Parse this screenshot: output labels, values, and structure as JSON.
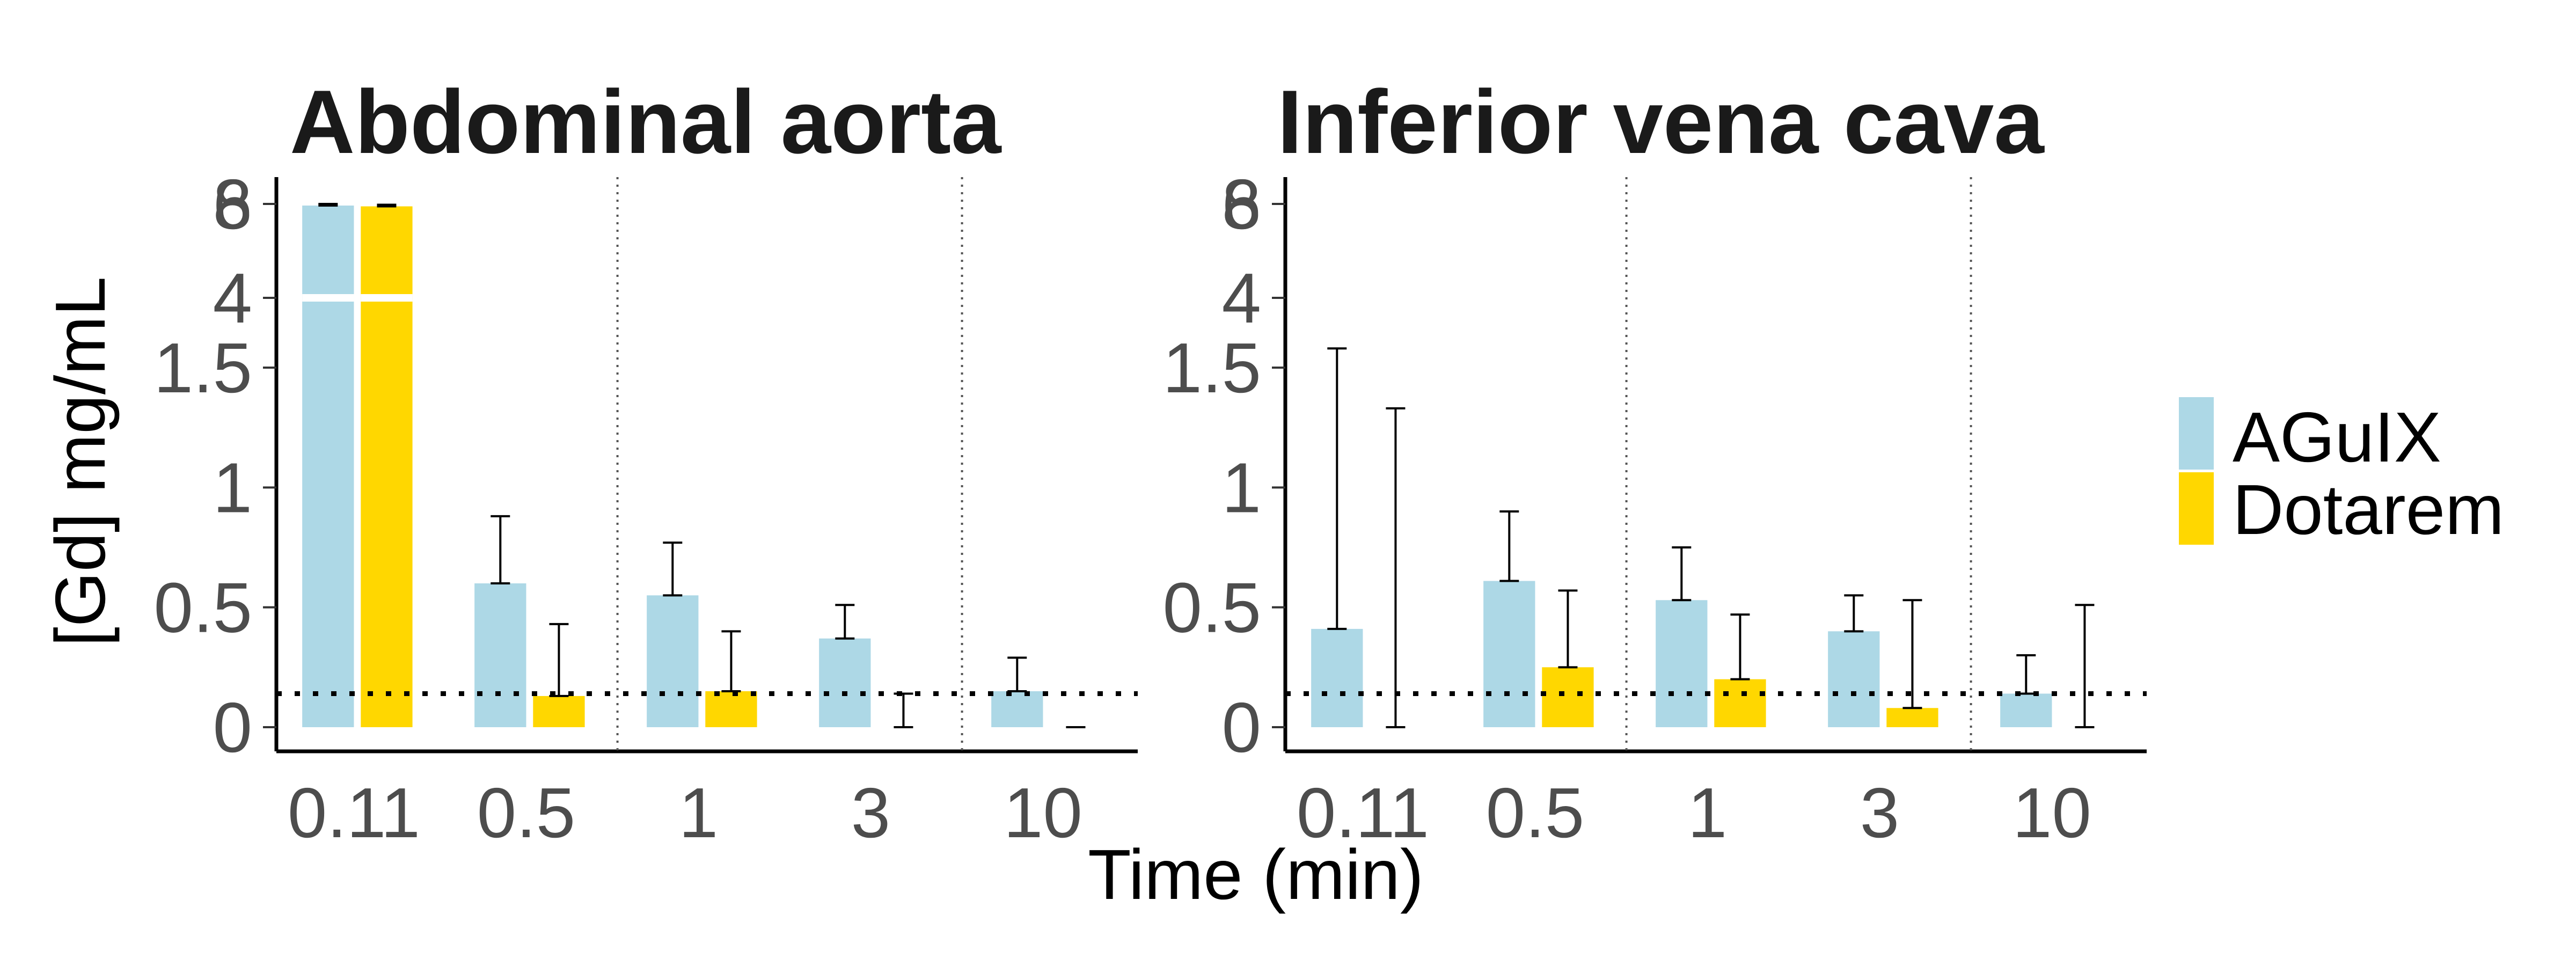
{
  "colors": {
    "AGuIX": "#add8e6",
    "Dotarem": "#ffd700"
  },
  "chart_data": [
    {
      "type": "bar",
      "title": "Abdominal aorta",
      "xlabel": "Time (min)",
      "ylabel": "[Gd] mg/mL",
      "categories": [
        "0.11",
        "0.5",
        "1",
        "3",
        "10"
      ],
      "y_axis_segments": [
        {
          "range": [
            0,
            2
          ],
          "ticks": [
            "0",
            "0.5",
            "1",
            "1.5"
          ]
        },
        {
          "range": [
            2,
            8
          ],
          "ticks": [
            "4",
            "6",
            "8"
          ]
        }
      ],
      "reference_line": 0.14,
      "series": [
        {
          "name": "AGuIX",
          "values": [
            5.9,
            0.6,
            0.55,
            0.37,
            0.15
          ],
          "error_upper": [
            6.0,
            0.88,
            0.77,
            0.51,
            0.29
          ],
          "error_lower": [
            5.9,
            0.6,
            0.55,
            0.37,
            0.15
          ]
        },
        {
          "name": "Dotarem",
          "values": [
            5.85,
            0.13,
            0.15,
            0.0,
            0.0
          ],
          "error_upper": [
            5.95,
            0.43,
            0.4,
            0.14,
            0.0
          ],
          "error_lower": [
            5.85,
            0.13,
            0.15,
            0.0,
            0.0
          ]
        }
      ]
    },
    {
      "type": "bar",
      "title": "Inferior vena cava",
      "xlabel": "Time (min)",
      "ylabel": "[Gd] mg/mL",
      "categories": [
        "0.11",
        "0.5",
        "1",
        "3",
        "10"
      ],
      "y_axis_segments": [
        {
          "range": [
            0,
            2
          ],
          "ticks": [
            "0",
            "0.5",
            "1",
            "1.5"
          ]
        },
        {
          "range": [
            2,
            8
          ],
          "ticks": [
            "4",
            "6",
            "8"
          ]
        }
      ],
      "reference_line": 0.14,
      "series": [
        {
          "name": "AGuIX",
          "values": [
            0.41,
            0.61,
            0.53,
            0.4,
            0.14
          ],
          "error_upper": [
            1.58,
            0.9,
            0.75,
            0.55,
            0.3
          ],
          "error_lower": [
            0.41,
            0.61,
            0.53,
            0.4,
            0.14
          ]
        },
        {
          "name": "Dotarem",
          "values": [
            0.0,
            0.25,
            0.2,
            0.08,
            0.0
          ],
          "error_upper": [
            1.33,
            0.57,
            0.47,
            0.53,
            0.51
          ],
          "error_lower": [
            0.0,
            0.25,
            0.2,
            0.08,
            0.0
          ]
        }
      ]
    }
  ],
  "legend": {
    "items": [
      "AGuIX",
      "Dotarem"
    ],
    "position": "right"
  }
}
